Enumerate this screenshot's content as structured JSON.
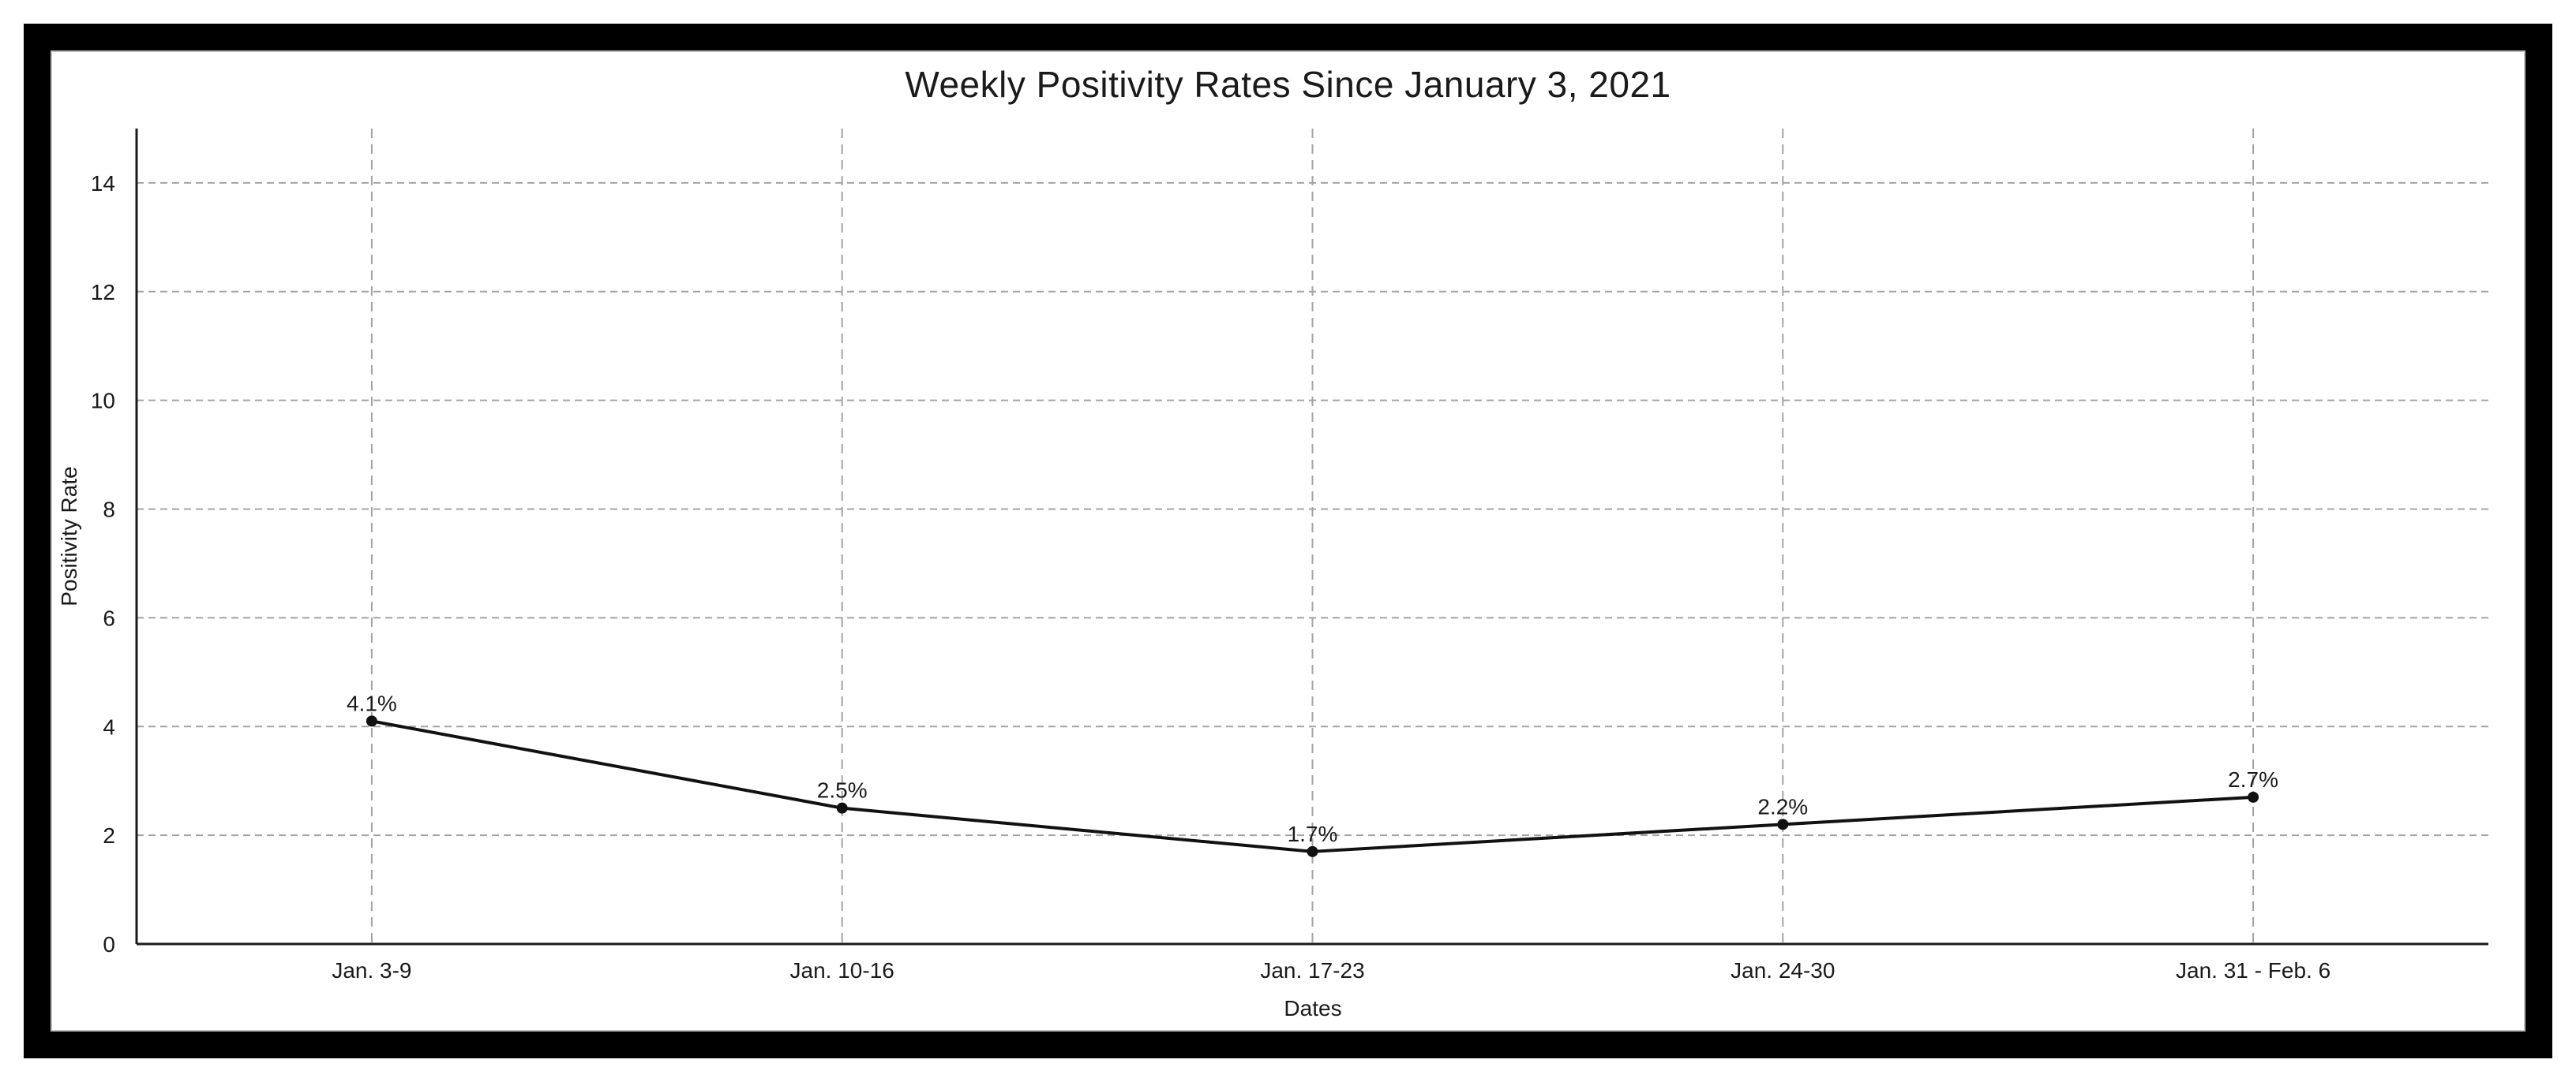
{
  "page": {
    "background": "#ffffff",
    "frame_color": "#000000",
    "frame_inner_outline": "#bdbdbd"
  },
  "chart_data": {
    "type": "line",
    "title": "Weekly Positivity Rates Since January 3, 2021",
    "xlabel": "Dates",
    "ylabel": "Positivity Rate",
    "categories": [
      "Jan. 3-9",
      "Jan. 10-16",
      "Jan. 17-23",
      "Jan. 24-30",
      "Jan. 31 - Feb. 6"
    ],
    "values": [
      4.1,
      2.5,
      1.7,
      2.2,
      2.7
    ],
    "point_labels": [
      "4.1%",
      "2.5%",
      "1.7%",
      "2.2%",
      "2.7%"
    ],
    "yticks": [
      0,
      2,
      4,
      6,
      8,
      10,
      12,
      14
    ],
    "ylim": [
      0,
      15
    ],
    "grid": {
      "horizontal": "dashed",
      "vertical": "dashed",
      "color": "#a3a3a3"
    },
    "legend": "none",
    "colors": {
      "line": "#111111",
      "marker": "#111111",
      "axis": "#1a1a1a",
      "tick_text": "#1a1a1a",
      "point_label_text": "#1a1a1a"
    }
  }
}
